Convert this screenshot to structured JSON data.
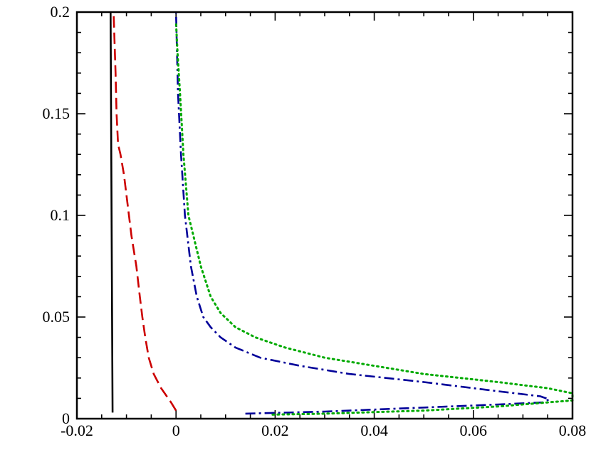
{
  "chart_data": {
    "type": "line",
    "title": "",
    "xlabel": "",
    "ylabel": "",
    "xlim": [
      -0.02,
      0.08
    ],
    "ylim": [
      0,
      0.2
    ],
    "grid": false,
    "legend": "none",
    "x_ticks": [
      -0.02,
      0,
      0.02,
      0.04,
      0.06,
      0.08
    ],
    "x_tick_labels": [
      "-0.02",
      "0",
      "0.02",
      "0.04",
      "0.06",
      "0.08"
    ],
    "y_ticks": [
      0,
      0.05,
      0.1,
      0.15,
      0.2
    ],
    "y_tick_labels": [
      "0",
      "0.05",
      "0.1",
      "0.15",
      "0.2"
    ],
    "series": [
      {
        "style": "solid",
        "color": "#000000",
        "points": [
          [
            -0.0128,
            0.003
          ],
          [
            -0.0129,
            0.05
          ],
          [
            -0.013,
            0.1
          ],
          [
            -0.0131,
            0.15
          ],
          [
            -0.0132,
            0.2
          ]
        ]
      },
      {
        "style": "dashed",
        "color": "#cc0000",
        "points": [
          [
            0.0,
            0.004
          ],
          [
            -0.001,
            0.008
          ],
          [
            -0.003,
            0.015
          ],
          [
            -0.0045,
            0.022
          ],
          [
            -0.0055,
            0.03
          ],
          [
            -0.0062,
            0.04
          ],
          [
            -0.0068,
            0.05
          ],
          [
            -0.0073,
            0.06
          ],
          [
            -0.008,
            0.075
          ],
          [
            -0.009,
            0.09
          ],
          [
            -0.0095,
            0.1
          ],
          [
            -0.0105,
            0.12
          ],
          [
            -0.0112,
            0.13
          ],
          [
            -0.0117,
            0.135
          ],
          [
            -0.012,
            0.15
          ],
          [
            -0.0122,
            0.17
          ],
          [
            -0.0126,
            0.2
          ]
        ]
      },
      {
        "style": "dashdot",
        "color": "#000099",
        "points": [
          [
            0.014,
            0.0025
          ],
          [
            0.03,
            0.0035
          ],
          [
            0.05,
            0.0055
          ],
          [
            0.065,
            0.007
          ],
          [
            0.074,
            0.008
          ],
          [
            0.0753,
            0.0095
          ],
          [
            0.0735,
            0.011
          ],
          [
            0.065,
            0.0135
          ],
          [
            0.05,
            0.018
          ],
          [
            0.035,
            0.022
          ],
          [
            0.025,
            0.026
          ],
          [
            0.017,
            0.03
          ],
          [
            0.012,
            0.035
          ],
          [
            0.009,
            0.04
          ],
          [
            0.007,
            0.045
          ],
          [
            0.0055,
            0.05
          ],
          [
            0.0042,
            0.06
          ],
          [
            0.003,
            0.075
          ],
          [
            0.0018,
            0.1
          ],
          [
            0.001,
            0.13
          ],
          [
            0.0004,
            0.16
          ],
          [
            0.0002,
            0.18
          ],
          [
            0.0,
            0.2
          ]
        ]
      },
      {
        "style": "dotted",
        "color": "#00aa00",
        "points": [
          [
            0.0195,
            0.002
          ],
          [
            0.03,
            0.0025
          ],
          [
            0.05,
            0.004
          ],
          [
            0.065,
            0.006
          ],
          [
            0.075,
            0.008
          ],
          [
            0.08,
            0.009
          ],
          [
            0.08,
            0.0125
          ],
          [
            0.075,
            0.015
          ],
          [
            0.065,
            0.018
          ],
          [
            0.05,
            0.022
          ],
          [
            0.04,
            0.026
          ],
          [
            0.03,
            0.03
          ],
          [
            0.022,
            0.035
          ],
          [
            0.016,
            0.04
          ],
          [
            0.012,
            0.045
          ],
          [
            0.009,
            0.052
          ],
          [
            0.007,
            0.06
          ],
          [
            0.005,
            0.075
          ],
          [
            0.0035,
            0.09
          ],
          [
            0.0025,
            0.1
          ],
          [
            0.0015,
            0.13
          ],
          [
            0.0008,
            0.16
          ],
          [
            0.0003,
            0.18
          ],
          [
            0.0,
            0.195
          ]
        ]
      }
    ]
  }
}
